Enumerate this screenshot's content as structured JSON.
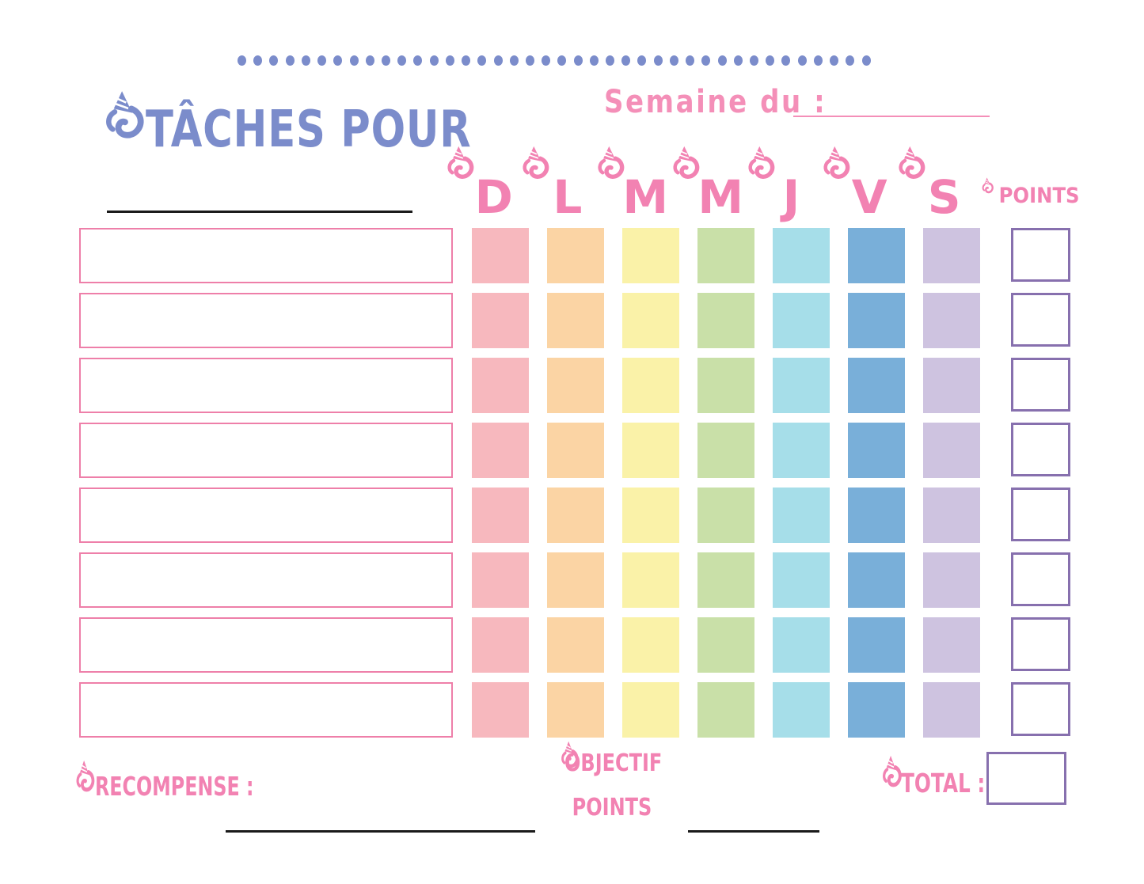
{
  "header": {
    "title": "TÂCHES POUR",
    "name_value": ""
  },
  "week": {
    "label": "Semaine du :",
    "value": ""
  },
  "columns": {
    "days": [
      "D",
      "L",
      "M",
      "M",
      "J",
      "V",
      "S"
    ],
    "points_label": "POINTS"
  },
  "grid": {
    "rows": 8,
    "day_colors": [
      "#F7B8BE",
      "#FBD4A4",
      "#FAF2A8",
      "#C9E0A8",
      "#A6DEE9",
      "#79AFD9",
      "#CEC3E0"
    ],
    "tasks": [
      "",
      "",
      "",
      "",
      "",
      "",
      "",
      ""
    ],
    "points": [
      "",
      "",
      "",
      "",
      "",
      "",
      "",
      ""
    ]
  },
  "footer": {
    "reward_label": "RECOMPENSE :",
    "reward_value": "",
    "goal_line1": "OBJECTIF",
    "goal_line2": "POINTS",
    "goal_value": "",
    "total_label": "TOTAL :",
    "total_value": ""
  },
  "decor": {
    "unicorn_icon": "unicorn-icon",
    "dot_count": 40,
    "accent_blue": "#7B8CCB",
    "accent_pink": "#F282B2",
    "bubble_pink": "#F48FB8",
    "task_border_pink": "#EE7FA9",
    "box_border_purple": "#8770AE",
    "line_black": "#1A1A1A"
  }
}
